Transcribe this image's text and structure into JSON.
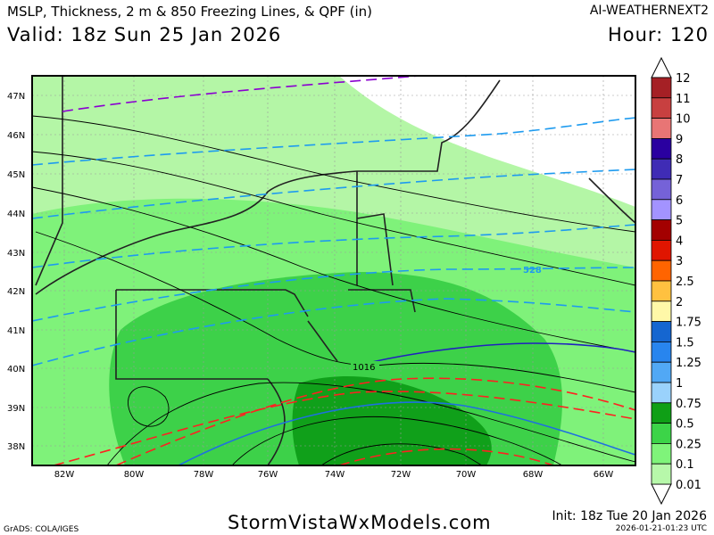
{
  "header": {
    "title": "MSLP, Thickness, 2 m & 850 Freezing Lines, & QPF (in)",
    "model": "AI-WEATHERNEXT2",
    "valid": "Valid: 18z Sun 25 Jan 2026",
    "hour": "Hour: 120"
  },
  "footer": {
    "grads": "GrADS: COLA/IGES",
    "site": "StormVistaWxModels.com",
    "init": "Init: 18z Tue 20 Jan 2026",
    "timestamp": "2026-01-21-01:23 UTC"
  },
  "map": {
    "lat_labels": [
      "47N",
      "46N",
      "45N",
      "44N",
      "43N",
      "42N",
      "41N",
      "40N",
      "39N",
      "38N"
    ],
    "lon_labels": [
      "82W",
      "80W",
      "78W",
      "76W",
      "74W",
      "72W",
      "70W",
      "68W",
      "66W"
    ],
    "contour_labels": {
      "thickness": "528",
      "isobar": "1016"
    },
    "colors": {
      "qpf_0_01": "#b4f6a6",
      "qpf_0_1": "#7ff27a",
      "qpf_0_25": "#3dd149",
      "qpf_0_5": "#10a01a",
      "isobar": "#000000",
      "thickness": "#1e9bef",
      "freezing_2m": "#ff2020",
      "freezing_850": "#2020c0",
      "thickness_540": "#8a00d0"
    }
  },
  "colorbar": {
    "labels": [
      "12",
      "11",
      "10",
      "9",
      "8",
      "7",
      "6",
      "5",
      "4",
      "3",
      "2.5",
      "2",
      "1.75",
      "1.5",
      "1.25",
      "1",
      "0.75",
      "0.5",
      "0.25",
      "0.1",
      "0.01"
    ],
    "colors": [
      "#a52025",
      "#c84040",
      "#e87575",
      "#2a00a0",
      "#3f2cb5",
      "#7562d8",
      "#a393ff",
      "#a30000",
      "#e01500",
      "#ff6400",
      "#ffc140",
      "#fff8a8",
      "#1566d0",
      "#2885ee",
      "#51a8f5",
      "#9ad2fc",
      "#0f9f16",
      "#3cd448",
      "#7ff47a",
      "#b7f8aa"
    ]
  }
}
